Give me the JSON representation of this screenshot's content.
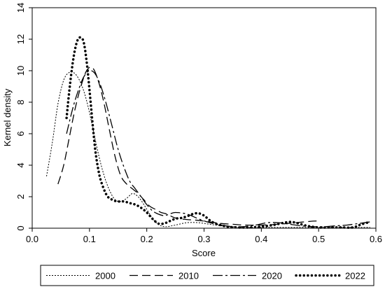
{
  "chart_data": {
    "type": "line",
    "xlabel": "Score",
    "ylabel": "Kernel density",
    "xlim": [
      0.0,
      0.6
    ],
    "ylim": [
      0,
      14
    ],
    "xticks": [
      "0.0",
      "0.1",
      "0.2",
      "0.3",
      "0.4",
      "0.5",
      "0.6"
    ],
    "yticks": [
      "0",
      "2",
      "4",
      "6",
      "8",
      "10",
      "12",
      "14"
    ],
    "grid": false,
    "legend_position": "bottom",
    "series": [
      {
        "name": "2000",
        "style": "short-dot",
        "color": "#000000",
        "x": [
          0.025,
          0.035,
          0.045,
          0.055,
          0.065,
          0.075,
          0.085,
          0.095,
          0.105,
          0.115,
          0.125,
          0.135,
          0.145,
          0.155,
          0.165,
          0.175,
          0.185,
          0.195,
          0.205,
          0.215,
          0.225,
          0.235,
          0.25,
          0.27,
          0.29,
          0.31,
          0.33,
          0.36,
          0.4,
          0.45,
          0.5,
          0.55,
          0.59
        ],
        "y": [
          3.3,
          5.4,
          7.9,
          9.4,
          9.9,
          9.8,
          9.2,
          8.1,
          6.5,
          4.8,
          3.4,
          2.4,
          1.8,
          1.7,
          1.9,
          2.2,
          2.0,
          1.5,
          0.9,
          0.4,
          0.15,
          0.1,
          0.2,
          0.35,
          0.35,
          0.25,
          0.15,
          0.05,
          0.05,
          0.05,
          0.05,
          0.05,
          0.05
        ]
      },
      {
        "name": "2010",
        "style": "long-dash",
        "color": "#000000",
        "x": [
          0.045,
          0.055,
          0.065,
          0.075,
          0.085,
          0.095,
          0.105,
          0.115,
          0.125,
          0.135,
          0.145,
          0.155,
          0.165,
          0.175,
          0.185,
          0.195,
          0.205,
          0.215,
          0.225,
          0.235,
          0.25,
          0.27,
          0.29,
          0.31,
          0.33,
          0.35,
          0.37,
          0.4,
          0.43,
          0.46,
          0.49,
          0.5
        ],
        "y": [
          2.8,
          4.0,
          5.8,
          7.6,
          9.0,
          10.0,
          10.2,
          9.4,
          8.0,
          6.2,
          4.5,
          3.3,
          2.8,
          2.5,
          2.2,
          1.8,
          1.4,
          1.2,
          1.0,
          0.9,
          0.65,
          0.55,
          0.5,
          0.4,
          0.3,
          0.25,
          0.2,
          0.2,
          0.25,
          0.35,
          0.45,
          0.45
        ]
      },
      {
        "name": "2020",
        "style": "dash-dot",
        "color": "#000000",
        "x": [
          0.06,
          0.07,
          0.08,
          0.09,
          0.1,
          0.11,
          0.12,
          0.13,
          0.14,
          0.15,
          0.16,
          0.17,
          0.18,
          0.19,
          0.2,
          0.21,
          0.22,
          0.23,
          0.24,
          0.25,
          0.27,
          0.29,
          0.31,
          0.33,
          0.35,
          0.37,
          0.39,
          0.41,
          0.43,
          0.45,
          0.47,
          0.49,
          0.51,
          0.53,
          0.55,
          0.57,
          0.59
        ],
        "y": [
          6.0,
          7.5,
          8.7,
          9.6,
          10.0,
          9.8,
          9.0,
          7.8,
          6.4,
          5.0,
          3.9,
          3.0,
          2.5,
          2.0,
          1.5,
          1.1,
          0.9,
          0.8,
          0.9,
          1.0,
          0.9,
          0.6,
          0.35,
          0.2,
          0.1,
          0.1,
          0.2,
          0.35,
          0.35,
          0.25,
          0.15,
          0.1,
          0.1,
          0.15,
          0.2,
          0.3,
          0.4
        ]
      },
      {
        "name": "2022",
        "style": "thick-dot",
        "color": "#000000",
        "x": [
          0.06,
          0.065,
          0.07,
          0.075,
          0.08,
          0.085,
          0.09,
          0.095,
          0.1,
          0.105,
          0.11,
          0.115,
          0.12,
          0.13,
          0.14,
          0.15,
          0.16,
          0.17,
          0.18,
          0.19,
          0.2,
          0.21,
          0.22,
          0.23,
          0.24,
          0.25,
          0.26,
          0.27,
          0.28,
          0.29,
          0.3,
          0.31,
          0.32,
          0.34,
          0.36,
          0.38,
          0.4,
          0.42,
          0.44,
          0.45,
          0.46,
          0.48,
          0.5,
          0.52,
          0.54,
          0.56,
          0.575,
          0.59
        ],
        "y": [
          7.0,
          8.8,
          10.3,
          11.4,
          12.0,
          12.1,
          11.8,
          10.6,
          8.8,
          6.8,
          5.0,
          3.8,
          3.0,
          2.1,
          1.8,
          1.7,
          1.7,
          1.6,
          1.5,
          1.3,
          1.0,
          0.6,
          0.3,
          0.3,
          0.45,
          0.6,
          0.65,
          0.75,
          0.9,
          0.95,
          0.8,
          0.5,
          0.3,
          0.1,
          0.05,
          0.05,
          0.1,
          0.2,
          0.35,
          0.4,
          0.35,
          0.15,
          0.05,
          0.05,
          0.05,
          0.05,
          0.25,
          0.4
        ]
      }
    ]
  }
}
